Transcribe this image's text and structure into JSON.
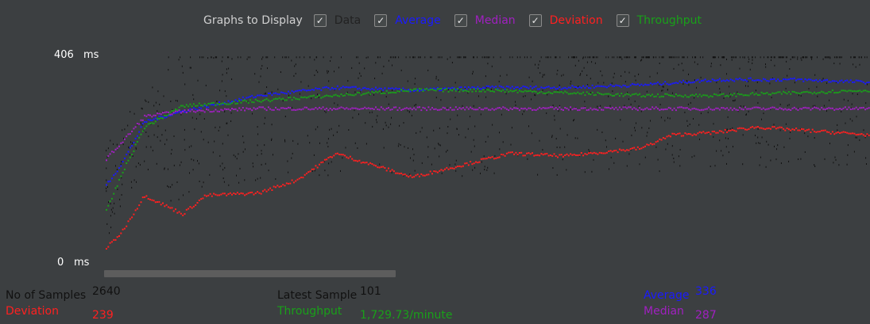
{
  "legend": {
    "title": "Graphs to Display",
    "items": [
      {
        "key": "data",
        "label": "Data",
        "checked": true,
        "color": "#222222"
      },
      {
        "key": "average",
        "label": "Average",
        "checked": true,
        "color": "#1a1aff"
      },
      {
        "key": "median",
        "label": "Median",
        "checked": true,
        "color": "#a020c0"
      },
      {
        "key": "deviation",
        "label": "Deviation",
        "checked": true,
        "color": "#ff2020"
      },
      {
        "key": "throughput",
        "label": "Throughput",
        "checked": true,
        "color": "#19a019"
      }
    ]
  },
  "axis": {
    "y_max_value": "406",
    "y_max_unit": "ms",
    "y_min_value": "0",
    "y_min_unit": "ms"
  },
  "stats": {
    "samples_label": "No of Samples",
    "samples_value": "2640",
    "deviation_label": "Deviation",
    "deviation_value": "239",
    "latest_label": "Latest Sample",
    "latest_value": "101",
    "throughput_label": "Throughput",
    "throughput_value": "1,729.73/minute",
    "average_label": "Average",
    "average_value": "336",
    "median_label": "Median",
    "median_value": "287"
  },
  "chart_data": {
    "type": "scatter",
    "ylim": [
      0,
      406
    ],
    "y_unit": "ms",
    "sample_count": 2640,
    "series": [
      {
        "name": "Average",
        "color": "#1a1aff",
        "x_fraction": [
          0,
          0.02,
          0.05,
          0.1,
          0.2,
          0.3,
          0.4,
          0.5,
          0.6,
          0.7,
          0.8,
          0.9,
          1.0
        ],
        "y": [
          160,
          200,
          280,
          300,
          330,
          345,
          340,
          345,
          345,
          350,
          360,
          360,
          355
        ]
      },
      {
        "name": "Median",
        "color": "#a020c0",
        "x_fraction": [
          0,
          0.02,
          0.05,
          0.1,
          0.2,
          0.3,
          0.4,
          0.5,
          0.6,
          0.7,
          0.8,
          0.9,
          1.0
        ],
        "y": [
          210,
          240,
          290,
          300,
          305,
          305,
          305,
          305,
          305,
          305,
          305,
          305,
          305
        ]
      },
      {
        "name": "Deviation",
        "color": "#ff2020",
        "x_fraction": [
          0,
          0.02,
          0.05,
          0.1,
          0.13,
          0.2,
          0.25,
          0.3,
          0.4,
          0.5,
          0.53,
          0.6,
          0.7,
          0.74,
          0.8,
          0.85,
          0.9,
          1.0
        ],
        "y": [
          40,
          70,
          140,
          105,
          140,
          145,
          170,
          220,
          175,
          210,
          220,
          215,
          230,
          255,
          260,
          270,
          265,
          255
        ]
      },
      {
        "name": "Throughput",
        "color": "#19a019",
        "x_fraction": [
          0,
          0.02,
          0.05,
          0.1,
          0.2,
          0.3,
          0.4,
          0.5,
          0.6,
          0.7,
          0.8,
          0.9,
          1.0
        ],
        "y": [
          110,
          180,
          270,
          310,
          320,
          330,
          340,
          340,
          335,
          330,
          330,
          335,
          340
        ]
      }
    ]
  }
}
